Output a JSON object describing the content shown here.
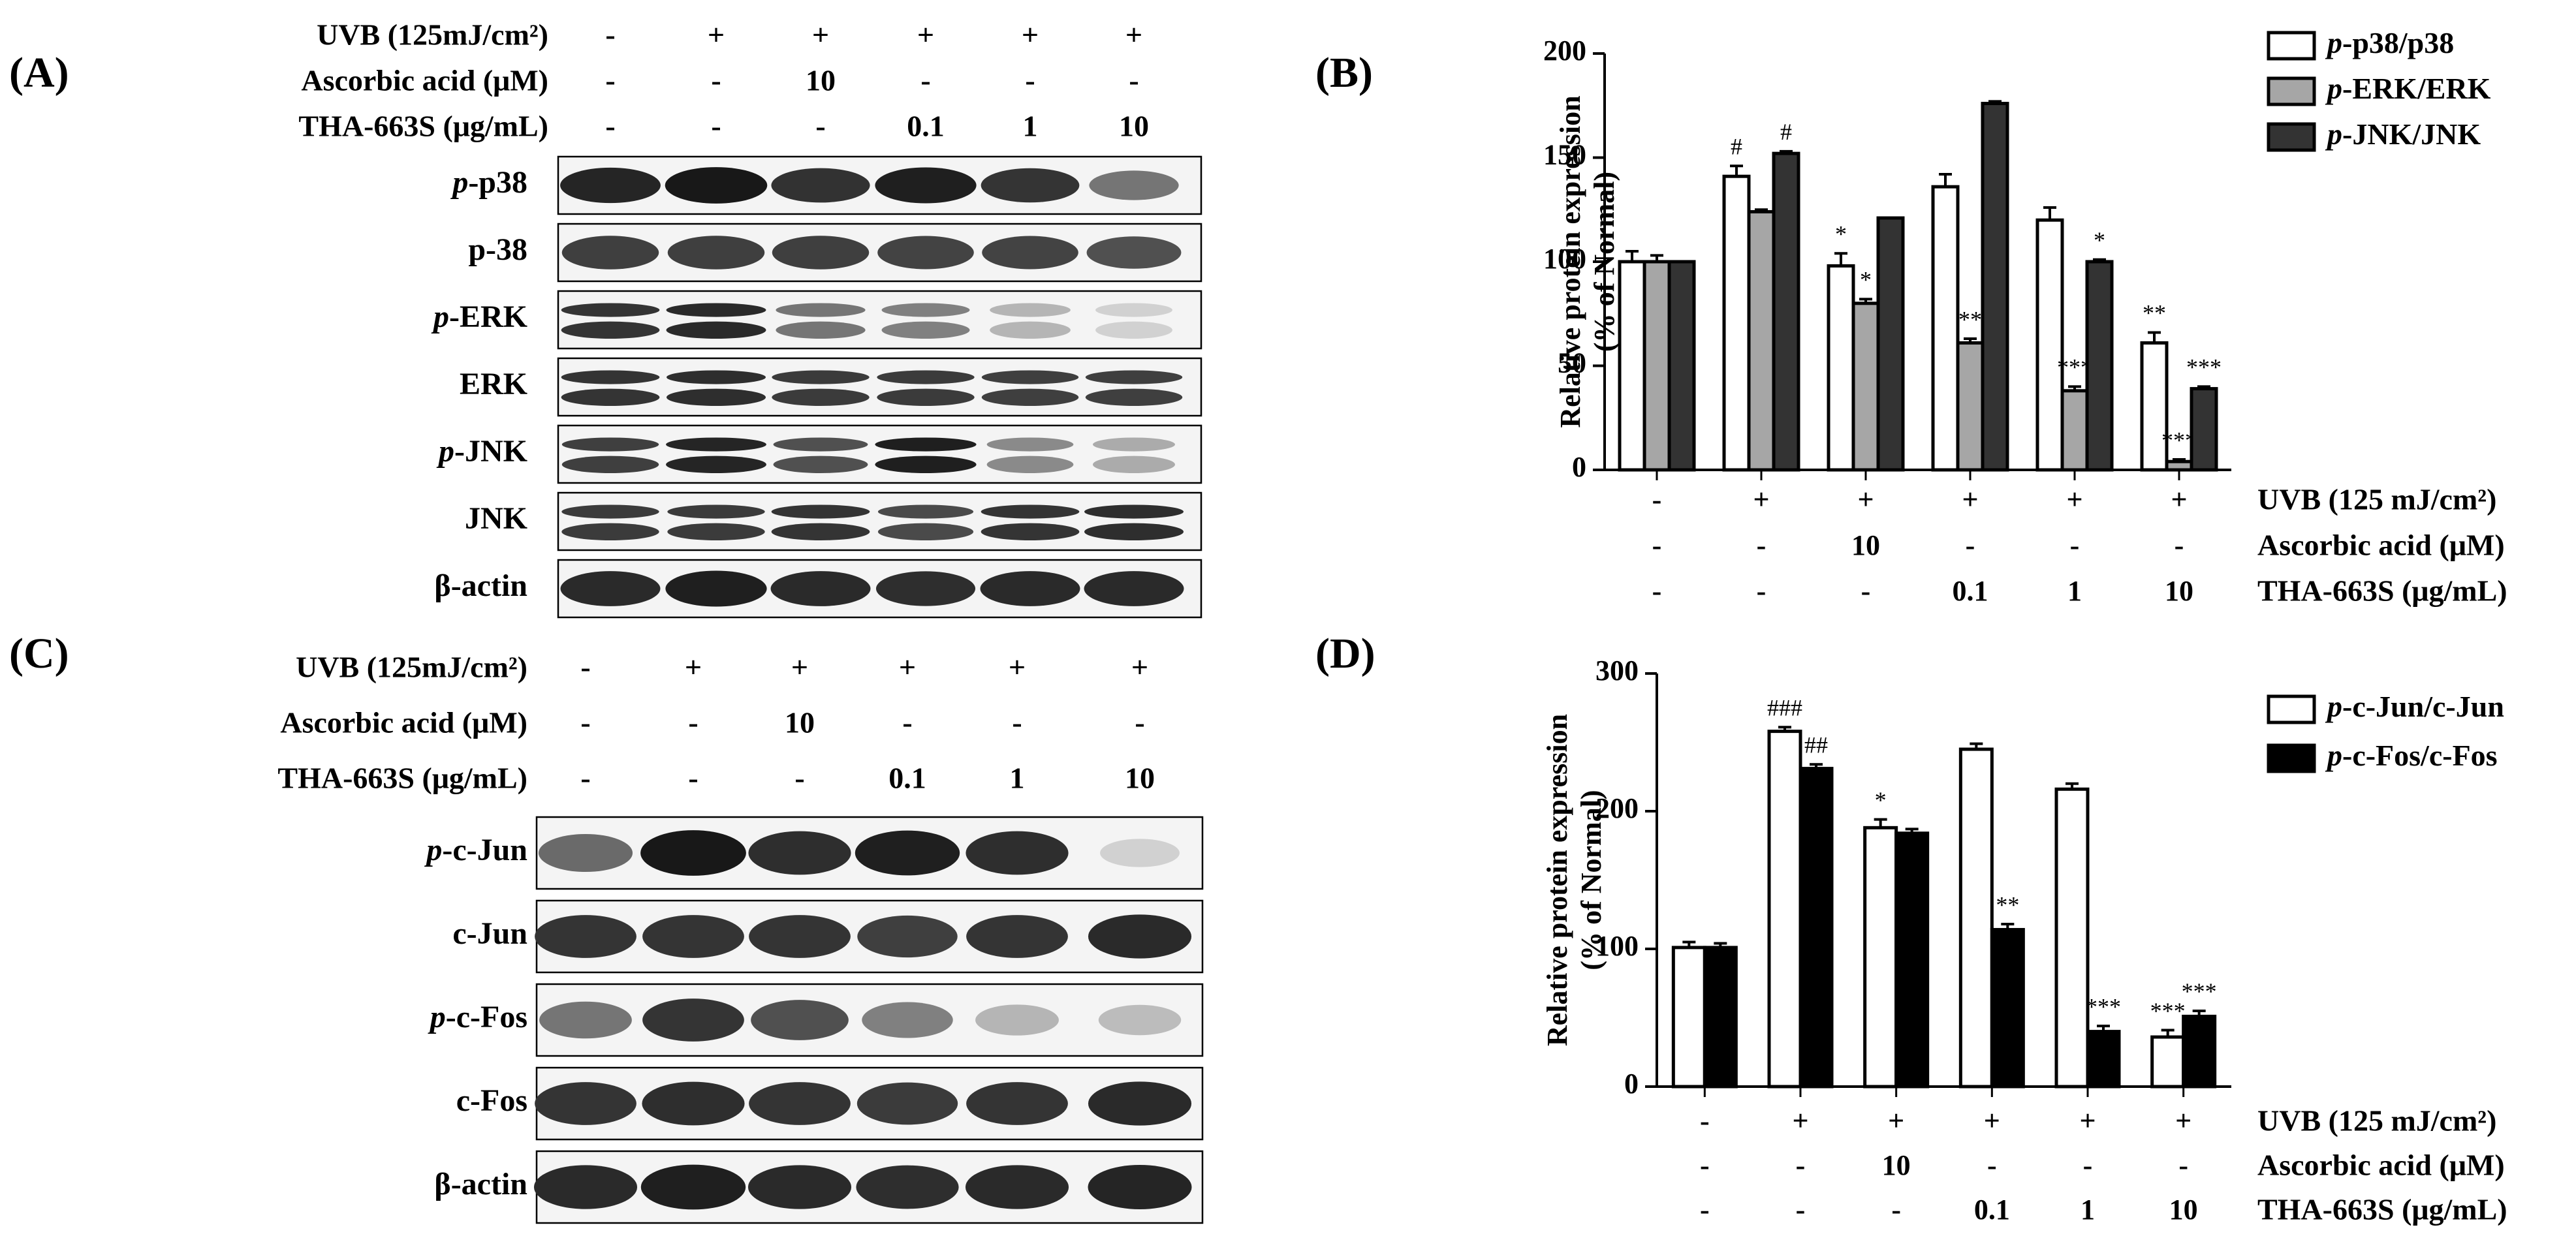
{
  "panels": {
    "A": {
      "label": "(A)",
      "conditions": [
        {
          "name": "UVB (125mJ/cm²)",
          "values": [
            "-",
            "+",
            "+",
            "+",
            "+",
            "+"
          ]
        },
        {
          "name": "Ascorbic acid (μM)",
          "values": [
            "-",
            "-",
            "10",
            "-",
            "-",
            "-"
          ]
        },
        {
          "name": "THA-663S (μg/mL)",
          "values": [
            "-",
            "-",
            "-",
            "0.1",
            "1",
            "10"
          ]
        }
      ],
      "blots": [
        {
          "label": "p-p38",
          "italic_prefix": "p",
          "rest": "-p38",
          "bands": 1,
          "intensity": [
            0.92,
            0.98,
            0.86,
            0.95,
            0.85,
            0.55
          ]
        },
        {
          "label": "p-38",
          "italic_prefix": "",
          "rest": "p-38",
          "bands": 1,
          "intensity": [
            0.8,
            0.8,
            0.8,
            0.78,
            0.78,
            0.72
          ]
        },
        {
          "label": "p-ERK",
          "italic_prefix": "p",
          "rest": "-ERK",
          "bands": 2,
          "intensity": [
            0.85,
            0.9,
            0.55,
            0.5,
            0.25,
            0.12
          ]
        },
        {
          "label": "ERK",
          "italic_prefix": "",
          "rest": "ERK",
          "bands": 2,
          "intensity": [
            0.85,
            0.88,
            0.82,
            0.82,
            0.8,
            0.8
          ]
        },
        {
          "label": "p-JNK",
          "italic_prefix": "p",
          "rest": "-JNK",
          "bands": 2,
          "intensity": [
            0.8,
            0.92,
            0.72,
            0.95,
            0.45,
            0.3
          ]
        },
        {
          "label": "JNK",
          "italic_prefix": "",
          "rest": "JNK",
          "bands": 2,
          "intensity": [
            0.82,
            0.82,
            0.85,
            0.75,
            0.85,
            0.88
          ]
        },
        {
          "label": "β-actin",
          "italic_prefix": "",
          "rest": "β-actin",
          "bands": 1,
          "intensity": [
            0.9,
            0.95,
            0.9,
            0.88,
            0.9,
            0.9
          ]
        }
      ]
    },
    "C": {
      "label": "(C)",
      "conditions": [
        {
          "name": "UVB (125mJ/cm²)",
          "values": [
            "-",
            "+",
            "+",
            "+",
            "+",
            "+"
          ]
        },
        {
          "name": "Ascorbic acid (μM)",
          "values": [
            "-",
            "-",
            "10",
            "-",
            "-",
            "-"
          ]
        },
        {
          "name": "THA-663S (μg/mL)",
          "values": [
            "-",
            "-",
            "-",
            "0.1",
            "1",
            "10"
          ]
        }
      ],
      "blots": [
        {
          "label": "p-c-Jun",
          "italic_prefix": "p",
          "rest": "-c-Jun",
          "bands": 1,
          "intensity": [
            0.6,
            0.98,
            0.88,
            0.95,
            0.88,
            0.12
          ]
        },
        {
          "label": "c-Jun",
          "italic_prefix": "",
          "rest": "c-Jun",
          "bands": 1,
          "intensity": [
            0.85,
            0.85,
            0.85,
            0.8,
            0.85,
            0.9
          ]
        },
        {
          "label": "p-c-Fos",
          "italic_prefix": "p",
          "rest": "-c-Fos",
          "bands": 1,
          "intensity": [
            0.55,
            0.85,
            0.72,
            0.5,
            0.25,
            0.22
          ]
        },
        {
          "label": "c-Fos",
          "italic_prefix": "",
          "rest": "c-Fos",
          "bands": 1,
          "intensity": [
            0.85,
            0.88,
            0.85,
            0.82,
            0.85,
            0.9
          ]
        },
        {
          "label": "β-actin",
          "italic_prefix": "",
          "rest": "β-actin",
          "bands": 1,
          "intensity": [
            0.9,
            0.95,
            0.9,
            0.88,
            0.9,
            0.92
          ]
        }
      ]
    }
  },
  "chart_data": [
    {
      "panel": "(B)",
      "type": "bar",
      "ylabel": "Relative protein expression\n(% of Normal)",
      "ylim": [
        0,
        200
      ],
      "yticks": [
        0,
        50,
        100,
        150,
        200
      ],
      "categories": [
        "1",
        "2",
        "3",
        "4",
        "5",
        "6"
      ],
      "conditions": [
        {
          "name": "UVB (125 mJ/cm²)",
          "values": [
            "-",
            "+",
            "+",
            "+",
            "+",
            "+"
          ]
        },
        {
          "name": "Ascorbic acid (μM)",
          "values": [
            "-",
            "-",
            "10",
            "-",
            "-",
            "-"
          ]
        },
        {
          "name": "THA-663S (μg/mL)",
          "values": [
            "-",
            "-",
            "-",
            "0.1",
            "1",
            "10"
          ]
        }
      ],
      "legend_position": "top-right",
      "series": [
        {
          "name": "p-p38/p38",
          "italic_prefix": "p",
          "rest": "-p38/p38",
          "fill": "#ffffff",
          "values": [
            100,
            141,
            98,
            136,
            120,
            61
          ],
          "errors": [
            5,
            5,
            6,
            6,
            6,
            5
          ],
          "annotations": [
            "",
            "#",
            "*",
            "",
            "",
            "**"
          ]
        },
        {
          "name": "p-ERK/ERK",
          "italic_prefix": "p",
          "rest": "-ERK/ERK",
          "fill": "#a6a6a6",
          "values": [
            100,
            124,
            80,
            61,
            38,
            4
          ],
          "errors": [
            3,
            1,
            2,
            2,
            2,
            1
          ],
          "annotations": [
            "",
            "",
            "*",
            "**",
            "***",
            "***"
          ]
        },
        {
          "name": "p-JNK/JNK",
          "italic_prefix": "p",
          "rest": "-JNK/JNK",
          "fill": "#333333",
          "values": [
            100,
            152,
            121,
            176,
            100,
            39
          ],
          "errors": [
            0,
            1,
            0,
            1,
            1,
            1
          ],
          "annotations": [
            "",
            "#",
            "",
            "",
            "*",
            "***"
          ]
        }
      ]
    },
    {
      "panel": "(D)",
      "type": "bar",
      "ylabel": "Relative protein expression\n(% of Normal)",
      "ylim": [
        0,
        300
      ],
      "yticks": [
        0,
        100,
        200,
        300
      ],
      "categories": [
        "1",
        "2",
        "3",
        "4",
        "5",
        "6"
      ],
      "conditions": [
        {
          "name": "UVB (125 mJ/cm²)",
          "values": [
            "-",
            "+",
            "+",
            "+",
            "+",
            "+"
          ]
        },
        {
          "name": "Ascorbic acid (μM)",
          "values": [
            "-",
            "-",
            "10",
            "-",
            "-",
            "-"
          ]
        },
        {
          "name": "THA-663S (μg/mL)",
          "values": [
            "-",
            "-",
            "-",
            "0.1",
            "1",
            "10"
          ]
        }
      ],
      "legend_position": "top-right",
      "series": [
        {
          "name": "p-c-Jun/c-Jun",
          "italic_prefix": "p",
          "rest": "-c-Jun/c-Jun",
          "fill": "#ffffff",
          "values": [
            101,
            258,
            188,
            245,
            216,
            36
          ],
          "errors": [
            4,
            3,
            6,
            4,
            4,
            5
          ],
          "annotations": [
            "",
            "###",
            "*",
            "",
            "",
            "***"
          ]
        },
        {
          "name": "p-c-Fos/c-Fos",
          "italic_prefix": "p",
          "rest": "-c-Fos/c-Fos",
          "fill": "#000000",
          "values": [
            101,
            231,
            184,
            114,
            40,
            51
          ],
          "errors": [
            3,
            3,
            3,
            4,
            4,
            4
          ],
          "annotations": [
            "",
            "##",
            "",
            "**",
            "***",
            "***"
          ]
        }
      ]
    }
  ]
}
